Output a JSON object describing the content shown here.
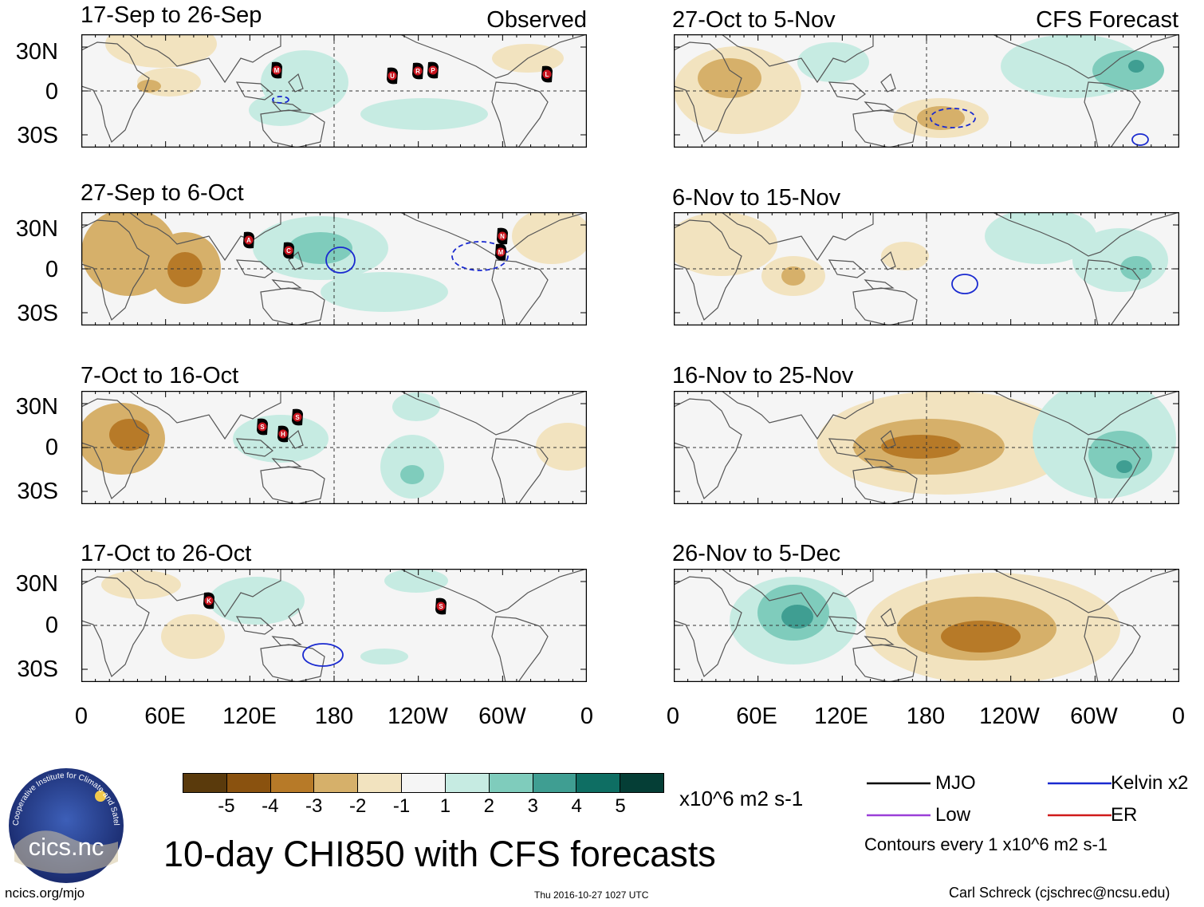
{
  "tags": {
    "observed": "Observed",
    "forecast": "CFS Forecast"
  },
  "panels": [
    {
      "title": "17-Sep to 26-Sep",
      "storms": [
        "M",
        "U",
        "R",
        "P",
        "L"
      ]
    },
    {
      "title": "27-Sep to 6-Oct",
      "storms": [
        "A",
        "C",
        "N",
        "M"
      ]
    },
    {
      "title": "7-Oct to 16-Oct",
      "storms": [
        "S",
        "H",
        "S"
      ]
    },
    {
      "title": "17-Oct to 26-Oct",
      "storms": [
        "K",
        "S"
      ]
    },
    {
      "title": "27-Oct to 5-Nov",
      "storms": []
    },
    {
      "title": "6-Nov to 15-Nov",
      "storms": []
    },
    {
      "title": "16-Nov to 25-Nov",
      "storms": []
    },
    {
      "title": "26-Nov to 5-Dec",
      "storms": []
    }
  ],
  "lat_labels": [
    "30N",
    "0",
    "30S"
  ],
  "lon_labels": [
    "0",
    "60E",
    "120E",
    "180",
    "120W",
    "60W",
    "0"
  ],
  "colorbar": {
    "colors": [
      "#5a3a0c",
      "#8a520f",
      "#b77a28",
      "#d6b06a",
      "#f2e3bf",
      "#f5f5f5",
      "#c6ebe2",
      "#7fccbc",
      "#3f9e92",
      "#0e6e63",
      "#053e36"
    ],
    "labels": [
      "-5",
      "-4",
      "-3",
      "-2",
      "-1",
      "1",
      "2",
      "3",
      "4",
      "5"
    ],
    "units": "x10^6 m2 s-1"
  },
  "legend": {
    "items": [
      {
        "label": "MJO",
        "color": "#000000"
      },
      {
        "label": "Kelvin x2",
        "color": "#1a2ad0"
      },
      {
        "label": "Low",
        "color": "#9b3fd8"
      },
      {
        "label": "ER",
        "color": "#d01a1a"
      }
    ],
    "note": "Contours every 1 x10^6 m2 s-1"
  },
  "main_title": "10-day CHI850 with CFS forecasts",
  "footer": {
    "left": "ncics.org/mjo",
    "center": "Thu 2016-10-27 1027 UTC",
    "right": "Carl Schreck (cjschrec@ncsu.edu)"
  },
  "logo": {
    "text": "cics.nc",
    "ring_text": "Cooperative Institute for Climate and Satellites"
  },
  "colors": {
    "brown": "#b77a28",
    "tan": "#f2e3bf",
    "teal": "#3f9e92",
    "kelvin": "#1a2ad0",
    "storm": "#c8141e"
  }
}
